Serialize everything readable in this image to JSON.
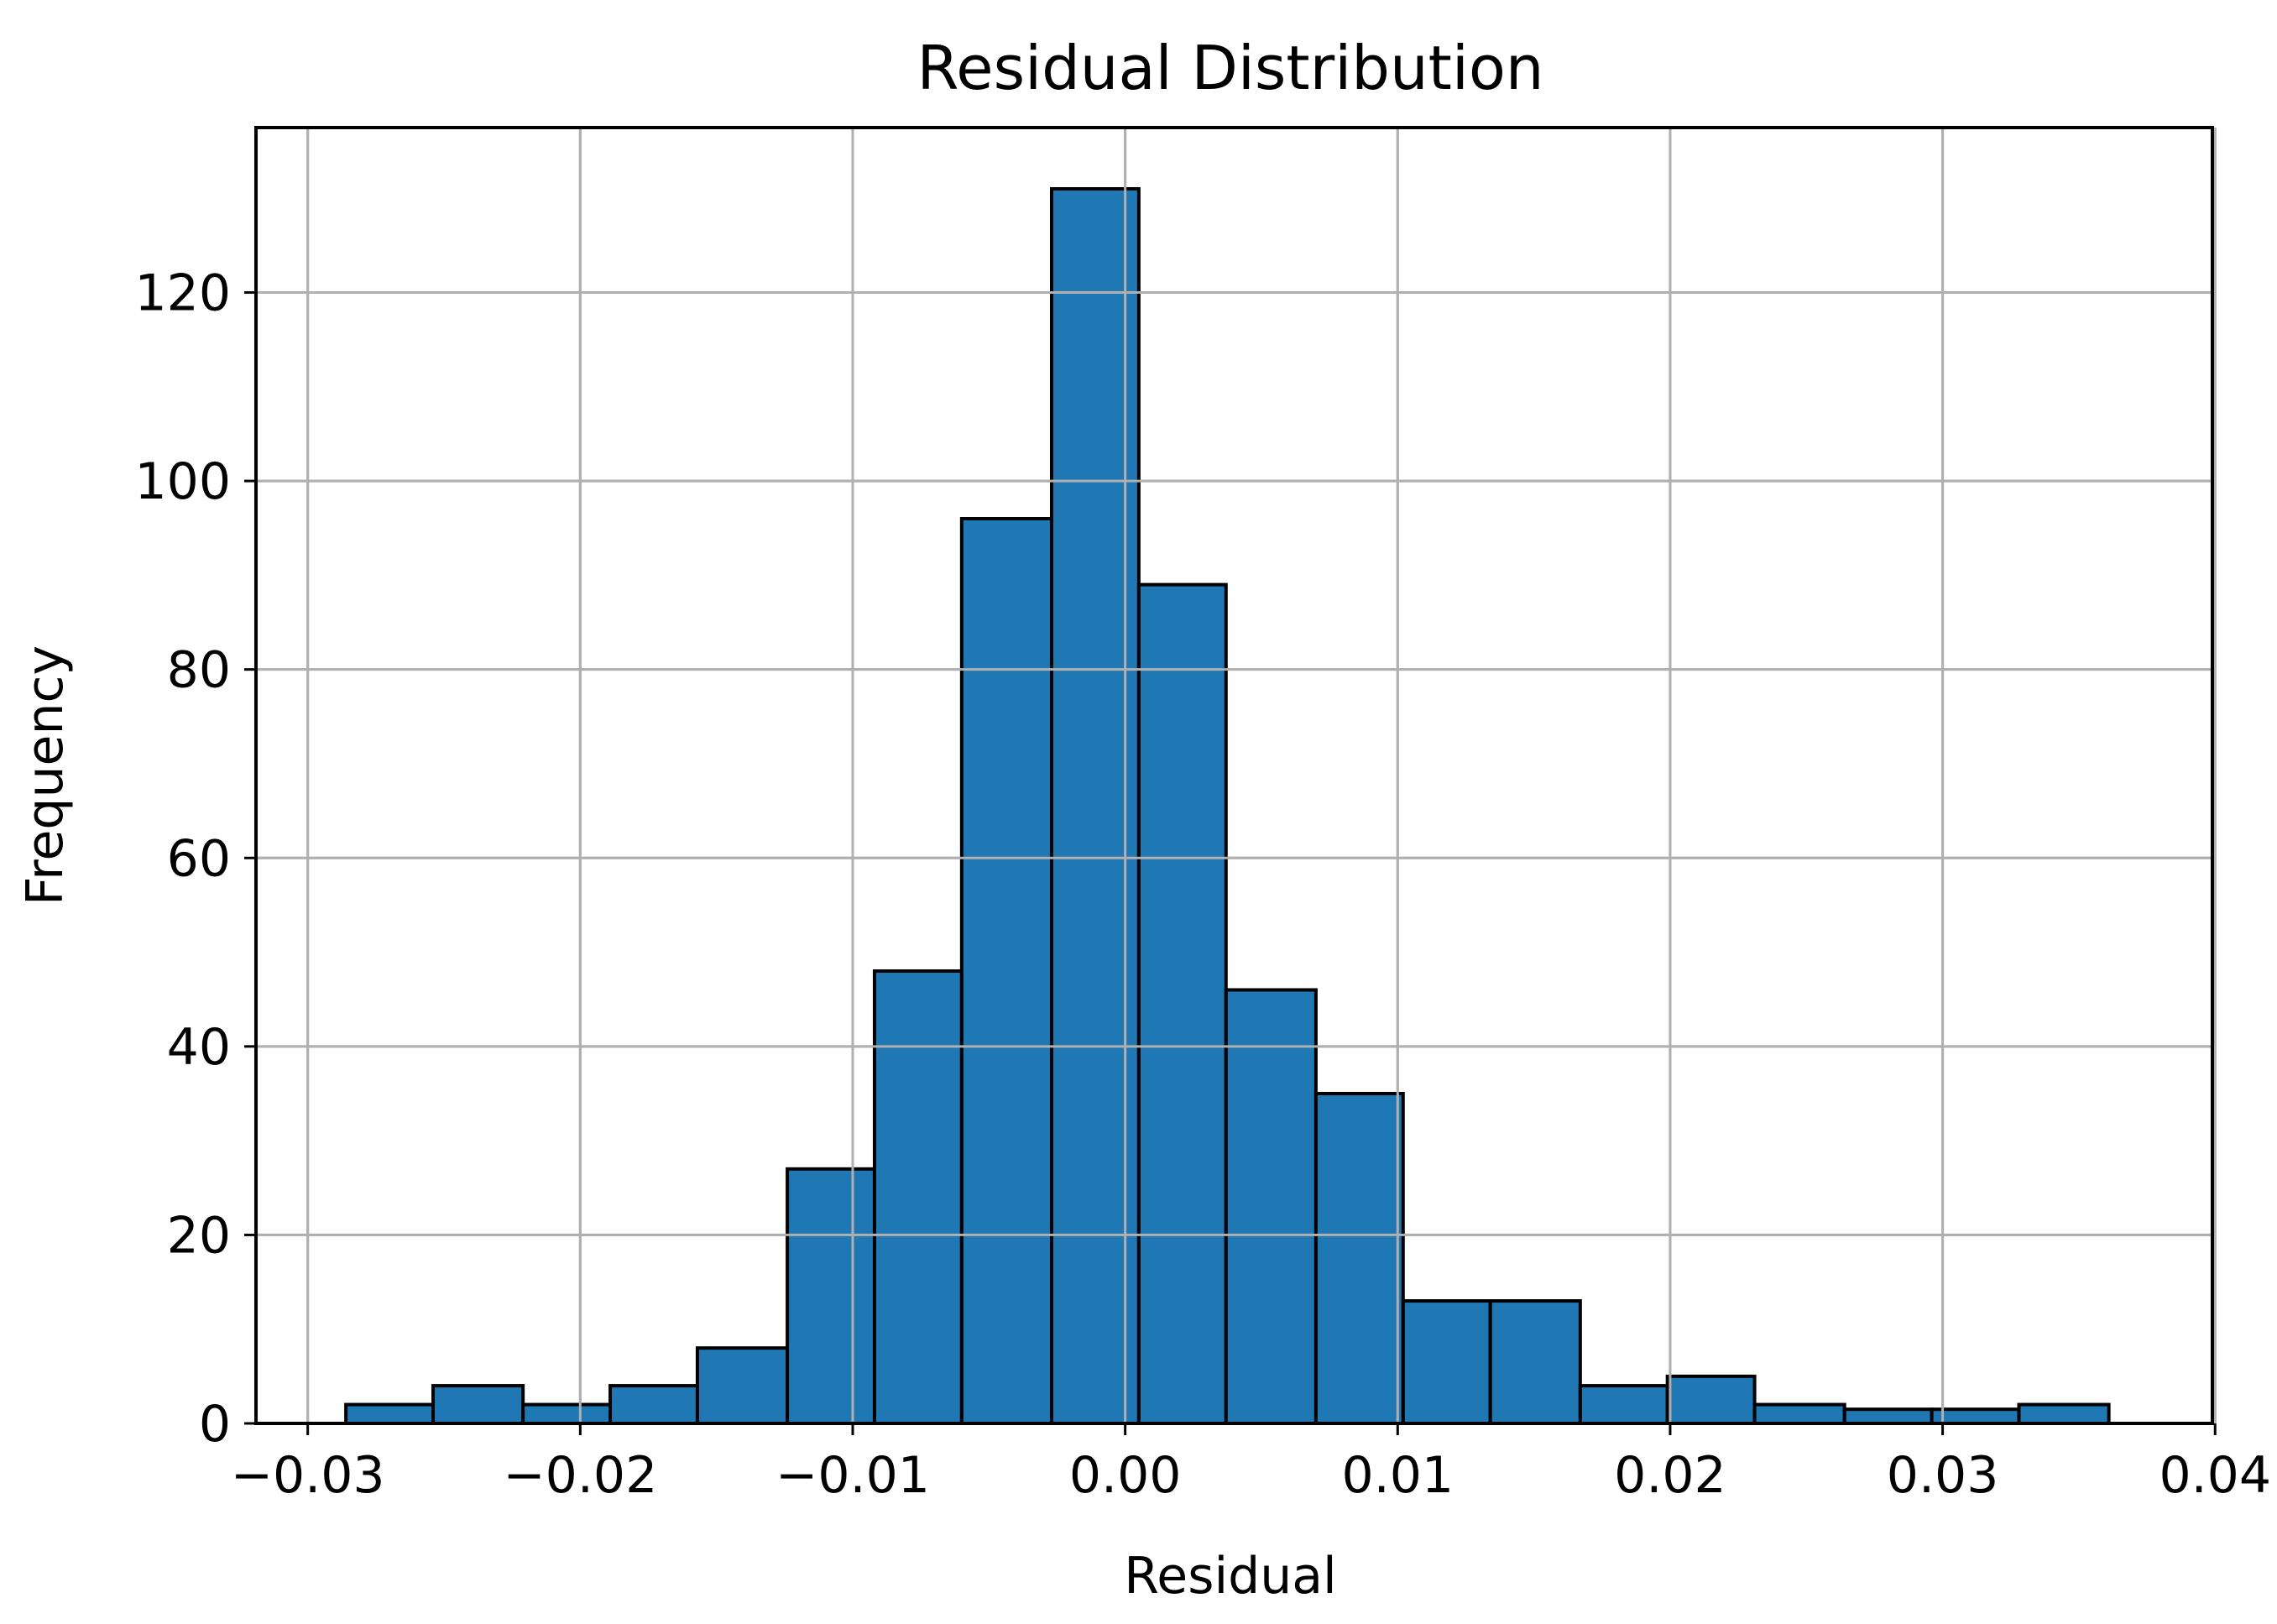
{
  "chart_data": {
    "type": "bar",
    "title": "Residual Distribution",
    "xlabel": "Residual",
    "ylabel": "Frequency",
    "xlim": [
      -0.0319,
      0.0399
    ],
    "ylim": [
      0,
      137.5
    ],
    "grid": true,
    "bar_color": "#1f77b4",
    "edge_color": "#000000",
    "grid_color": "#b0b0b0",
    "x_ticks": [
      {
        "value": -0.03,
        "label": "−0.03"
      },
      {
        "value": -0.02,
        "label": "−0.02"
      },
      {
        "value": -0.01,
        "label": "−0.01"
      },
      {
        "value": 0.0,
        "label": "0.00"
      },
      {
        "value": 0.01,
        "label": "0.01"
      },
      {
        "value": 0.02,
        "label": "0.02"
      },
      {
        "value": 0.03,
        "label": "0.03"
      },
      {
        "value": 0.04,
        "label": "0.04"
      }
    ],
    "y_ticks": [
      {
        "value": 0,
        "label": "0"
      },
      {
        "value": 20,
        "label": "20"
      },
      {
        "value": 40,
        "label": "40"
      },
      {
        "value": 60,
        "label": "60"
      },
      {
        "value": 80,
        "label": "80"
      },
      {
        "value": 100,
        "label": "100"
      },
      {
        "value": 120,
        "label": "120"
      }
    ],
    "bin_edges": [
      -0.0286,
      -0.0254,
      -0.0221,
      -0.0189,
      -0.0157,
      -0.0124,
      -0.0092,
      -0.006,
      -0.0027,
      0.0005,
      0.0037,
      0.007,
      0.0102,
      0.0134,
      0.0167,
      0.0199,
      0.0231,
      0.0264,
      0.0296,
      0.0328,
      0.0361
    ],
    "values": [
      2,
      4,
      2,
      4,
      8,
      27,
      48,
      96,
      131,
      89,
      46,
      35,
      13,
      13,
      4,
      5,
      2,
      1.5,
      1.5,
      2
    ]
  }
}
